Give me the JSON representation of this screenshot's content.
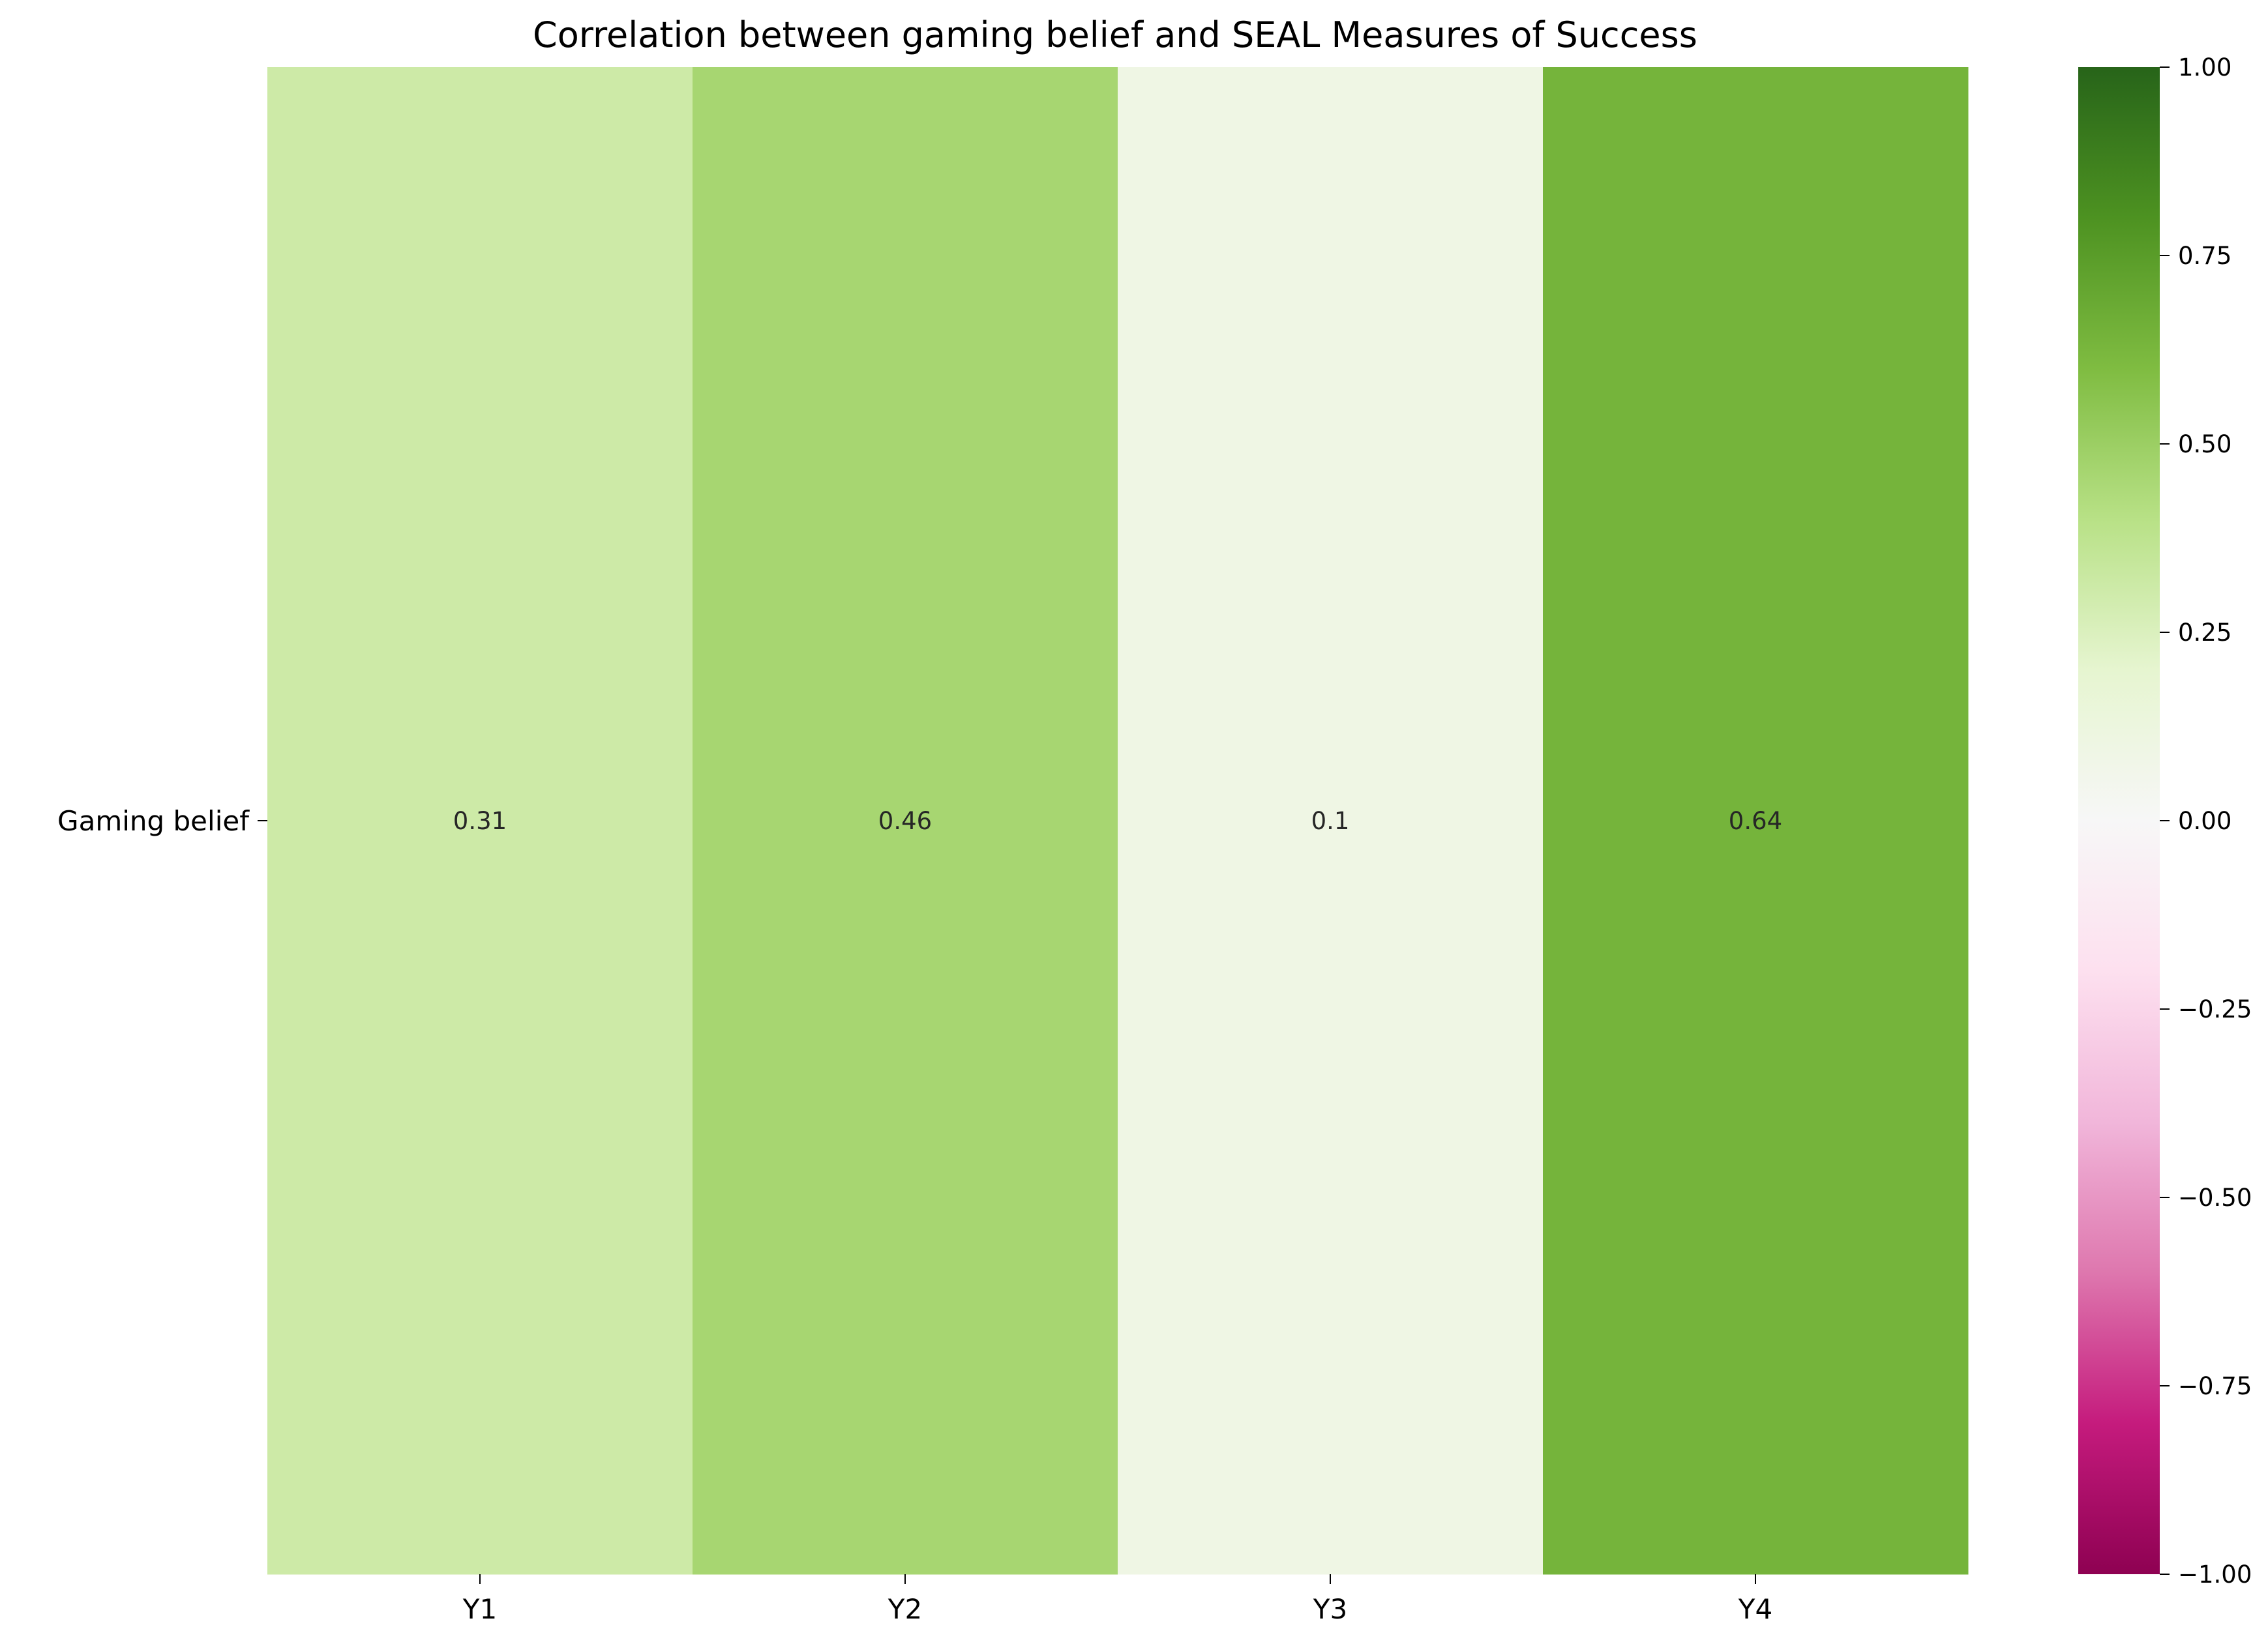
{
  "chart_data": {
    "type": "heatmap",
    "title": "Correlation between gaming belief and SEAL Measures of Success",
    "xlabel": "",
    "ylabel": "",
    "x_categories": [
      "Y1",
      "Y2",
      "Y3",
      "Y4"
    ],
    "y_categories": [
      "Gaming belief"
    ],
    "values": [
      [
        0.31,
        0.46,
        0.1,
        0.64
      ]
    ],
    "cell_labels": [
      [
        "0.31",
        "0.46",
        "0.1",
        "0.64"
      ]
    ],
    "colormap": "PiYG",
    "vmin": -1.0,
    "vmax": 1.0,
    "colorbar": {
      "ticks": [
        -1.0,
        -0.75,
        -0.5,
        -0.25,
        0.0,
        0.25,
        0.5,
        0.75,
        1.0
      ],
      "tick_labels": [
        "−1.00",
        "−0.75",
        "−0.50",
        "−0.25",
        "0.00",
        "0.25",
        "0.50",
        "0.75",
        "1.00"
      ]
    },
    "grid": false,
    "legend": "colorbar-right"
  }
}
